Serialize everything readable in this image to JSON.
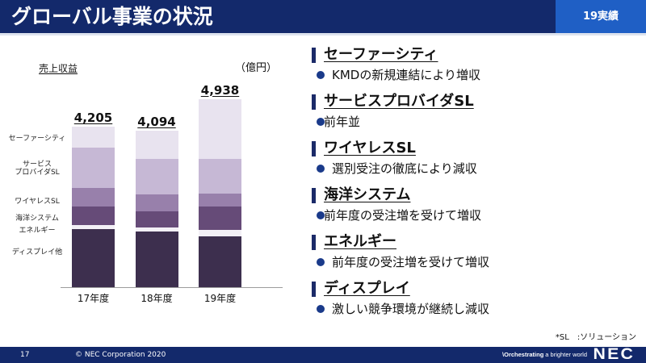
{
  "header": {
    "title": "グローバル事業の状況",
    "badge": "19実績"
  },
  "chart_data": {
    "type": "bar",
    "stacked": true,
    "title": "売上収益",
    "unit": "（億円）",
    "categories": [
      "17年度",
      "18年度",
      "19年度"
    ],
    "series": [
      {
        "name": "ディスプレイ他",
        "color": "#3d2f4e",
        "values": [
          1530,
          1470,
          1335
        ]
      },
      {
        "name": "エネルギー",
        "color": "#f3f0f6",
        "values": [
          105,
          85,
          170
        ]
      },
      {
        "name": "海洋システム",
        "color": "#664b78",
        "values": [
          470,
          425,
          615
        ]
      },
      {
        "name": "ワイヤレスSL",
        "color": "#9880ab",
        "values": [
          490,
          450,
          340
        ]
      },
      {
        "name": "サービス\nプロバイダSL",
        "color": "#c6b8d5",
        "values": [
          1060,
          940,
          910
        ]
      },
      {
        "name": "セーファーシティ",
        "color": "#e8e3ef",
        "values": [
          550,
          724,
          1568
        ]
      }
    ],
    "total_labels": [
      "4,205",
      "4,094",
      "4,938"
    ],
    "ylim": [
      0,
      5500
    ],
    "grid": false,
    "legend": "left"
  },
  "segments": [
    {
      "heading": "セーファーシティ",
      "comment": "KMDの新規連結により増収"
    },
    {
      "heading": "サービスプロバイダSL",
      "comment": "前年並"
    },
    {
      "heading": "ワイヤレスSL",
      "comment": "選別受注の徹底により減収"
    },
    {
      "heading": "海洋システム",
      "comment": "前年度の受注増を受けて増収"
    },
    {
      "heading": "エネルギー",
      "comment": "前年度の受注増を受けて増収"
    },
    {
      "heading": "ディスプレイ",
      "comment": "激しい競争環境が継続し減収"
    }
  ],
  "footnote": "*SL　:ソリューション",
  "footer": {
    "page_number": "17",
    "copyright": "© NEC Corporation 2020",
    "tagline_bold": "\\Orchestrating",
    "tagline_rest": "a brighter world",
    "logo": "NEC"
  },
  "colors": {
    "header_bg": "#13296b",
    "badge_bg": "#1f5fc5",
    "accent": "#1b2a68",
    "bullet": "#1a3a8a",
    "footer_bg": "#13296b"
  },
  "icons": {
    "section_marker": "section-marker-icon",
    "bullet": "bullet-dot-icon"
  }
}
